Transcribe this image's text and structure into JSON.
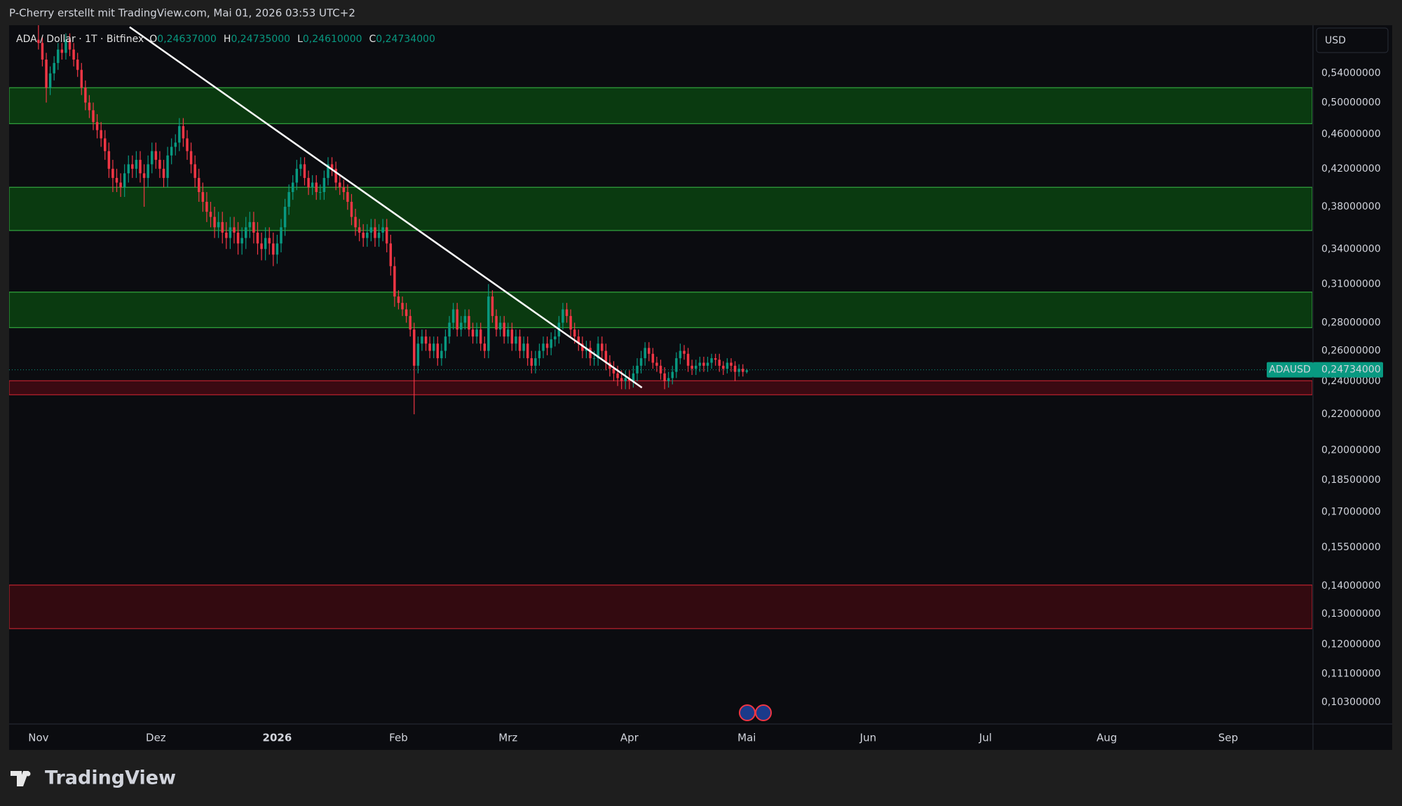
{
  "top_bar": "P-Cherry erstellt mit TradingView.com, Mai 01, 2026 03:53 UTC+2",
  "logo": "TradingView",
  "chart_data": {
    "type": "candlestick",
    "symbol": "ADA / Dollar · 1T · Bitfinex",
    "ohlc_legend": [
      {
        "key": "O",
        "value": {
          "value": 0.24637,
          "label": "0,24637000"
        }
      },
      {
        "key": "H",
        "value": {
          "value": 0.24735,
          "label": "0,24735000"
        }
      },
      {
        "key": "L",
        "value": {
          "value": 0.2461,
          "label": "0,24610000"
        }
      },
      {
        "key": "C",
        "value": {
          "value": 0.24734,
          "label": "0,24734000"
        }
      }
    ],
    "currency": "USD",
    "symbol_tag": "ADAUSD",
    "last_price": {
      "value": 0.24734,
      "label": "0,24734000"
    },
    "log_scale": true,
    "grid": false,
    "up_color": "#089981",
    "down_color": "#f23645",
    "xlim": [
      -7.5,
      325.5
    ],
    "ylim": [
      0.0973,
      0.613
    ],
    "xticks": [
      {
        "value": 0,
        "label": "Nov"
      },
      {
        "value": 30,
        "label": "Dez"
      },
      {
        "value": 61,
        "label": "2026"
      },
      {
        "value": 92,
        "label": "Feb"
      },
      {
        "value": 120,
        "label": "Mrz"
      },
      {
        "value": 151,
        "label": "Apr"
      },
      {
        "value": 181,
        "label": "Mai"
      },
      {
        "value": 212,
        "label": "Jun"
      },
      {
        "value": 242,
        "label": "Jul"
      },
      {
        "value": 273,
        "label": "Aug"
      },
      {
        "value": 304,
        "label": "Sep"
      }
    ],
    "yticks": [
      {
        "value": 0.54,
        "label": "0,54000000"
      },
      {
        "value": 0.5,
        "label": "0,50000000"
      },
      {
        "value": 0.46,
        "label": "0,46000000"
      },
      {
        "value": 0.42,
        "label": "0,42000000"
      },
      {
        "value": 0.38,
        "label": "0,38000000"
      },
      {
        "value": 0.34,
        "label": "0,34000000"
      },
      {
        "value": 0.31,
        "label": "0,31000000"
      },
      {
        "value": 0.28,
        "label": "0,28000000"
      },
      {
        "value": 0.26,
        "label": "0,26000000"
      },
      {
        "value": 0.24,
        "label": "0,24000000"
      },
      {
        "value": 0.22,
        "label": "0,22000000"
      },
      {
        "value": 0.2,
        "label": "0,20000000"
      },
      {
        "value": 0.185,
        "label": "0,18500000"
      },
      {
        "value": 0.17,
        "label": "0,17000000"
      },
      {
        "value": 0.155,
        "label": "0,15500000"
      },
      {
        "value": 0.14,
        "label": "0,14000000"
      },
      {
        "value": 0.13,
        "label": "0,13000000"
      },
      {
        "value": 0.12,
        "label": "0,12000000"
      },
      {
        "value": 0.111,
        "label": "0,11100000"
      },
      {
        "value": 0.103,
        "label": "0,10300000"
      }
    ],
    "zones": [
      {
        "top": 0.52,
        "bottom": 0.473,
        "fill": "#0a3a10",
        "border": "#2f9e3b"
      },
      {
        "top": 0.4,
        "bottom": 0.357,
        "fill": "#0a3a10",
        "border": "#2f9e3b"
      },
      {
        "top": 0.3035,
        "bottom": 0.2764,
        "fill": "#0a3a10",
        "border": "#2f9e3b"
      },
      {
        "top": 0.2403,
        "bottom": 0.2316,
        "fill": "#3a0a12",
        "border": "#b3202c"
      },
      {
        "top": 0.1403,
        "bottom": 0.1251,
        "fill": "#330a10",
        "border": "#b3202c"
      }
    ],
    "trendline": {
      "start": [
        23.3,
        0.61
      ],
      "end": [
        154.2,
        0.236
      ],
      "color": "#ffffff"
    },
    "x": [
      0,
      1,
      2,
      3,
      4,
      5,
      6,
      7,
      8,
      9,
      10,
      11,
      12,
      13,
      14,
      15,
      16,
      17,
      18,
      19,
      20,
      21,
      22,
      23,
      24,
      25,
      26,
      27,
      28,
      29,
      30,
      31,
      32,
      33,
      34,
      35,
      36,
      37,
      38,
      39,
      40,
      41,
      42,
      43,
      44,
      45,
      46,
      47,
      48,
      49,
      50,
      51,
      52,
      53,
      54,
      55,
      56,
      57,
      58,
      59,
      60,
      61,
      62,
      63,
      64,
      65,
      66,
      67,
      68,
      69,
      70,
      71,
      72,
      73,
      74,
      75,
      76,
      77,
      78,
      79,
      80,
      81,
      82,
      83,
      84,
      85,
      86,
      87,
      88,
      89,
      90,
      91,
      92,
      93,
      94,
      95,
      96,
      97,
      98,
      99,
      100,
      101,
      102,
      103,
      104,
      105,
      106,
      107,
      108,
      109,
      110,
      111,
      112,
      113,
      114,
      115,
      116,
      117,
      118,
      119,
      120,
      121,
      122,
      123,
      124,
      125,
      126,
      127,
      128,
      129,
      130,
      131,
      132,
      133,
      134,
      135,
      136,
      137,
      138,
      139,
      140,
      141,
      142,
      143,
      144,
      145,
      146,
      147,
      148,
      149,
      150,
      151,
      152,
      153,
      154,
      155,
      156,
      157,
      158,
      159,
      160,
      161,
      162,
      163,
      164,
      165,
      166,
      167,
      168,
      169,
      170,
      171,
      172,
      173,
      174,
      175,
      176,
      177,
      178,
      179,
      180,
      181
    ],
    "open": [
      0.59,
      0.585,
      0.56,
      0.52,
      0.54,
      0.555,
      0.575,
      0.57,
      0.59,
      0.575,
      0.56,
      0.545,
      0.52,
      0.5,
      0.49,
      0.475,
      0.465,
      0.455,
      0.44,
      0.42,
      0.41,
      0.405,
      0.4,
      0.415,
      0.425,
      0.42,
      0.43,
      0.415,
      0.41,
      0.425,
      0.44,
      0.43,
      0.42,
      0.41,
      0.435,
      0.445,
      0.45,
      0.47,
      0.455,
      0.44,
      0.425,
      0.41,
      0.395,
      0.385,
      0.375,
      0.37,
      0.36,
      0.365,
      0.355,
      0.35,
      0.36,
      0.355,
      0.345,
      0.35,
      0.36,
      0.365,
      0.355,
      0.345,
      0.34,
      0.35,
      0.345,
      0.335,
      0.345,
      0.36,
      0.38,
      0.395,
      0.405,
      0.42,
      0.425,
      0.41,
      0.4,
      0.405,
      0.395,
      0.395,
      0.41,
      0.425,
      0.42,
      0.405,
      0.4,
      0.395,
      0.385,
      0.37,
      0.36,
      0.355,
      0.35,
      0.355,
      0.36,
      0.35,
      0.355,
      0.36,
      0.345,
      0.325,
      0.3,
      0.295,
      0.29,
      0.285,
      0.275,
      0.25,
      0.265,
      0.27,
      0.265,
      0.26,
      0.265,
      0.255,
      0.26,
      0.27,
      0.28,
      0.29,
      0.275,
      0.28,
      0.285,
      0.275,
      0.27,
      0.275,
      0.265,
      0.26,
      0.3,
      0.285,
      0.275,
      0.28,
      0.27,
      0.275,
      0.265,
      0.27,
      0.26,
      0.265,
      0.255,
      0.25,
      0.255,
      0.26,
      0.265,
      0.262,
      0.268,
      0.27,
      0.28,
      0.29,
      0.285,
      0.275,
      0.27,
      0.265,
      0.26,
      0.262,
      0.255,
      0.255,
      0.265,
      0.26,
      0.252,
      0.248,
      0.245,
      0.242,
      0.24,
      0.242,
      0.24,
      0.245,
      0.25,
      0.255,
      0.262,
      0.258,
      0.252,
      0.25,
      0.245,
      0.24,
      0.242,
      0.246,
      0.255,
      0.26,
      0.258,
      0.25,
      0.248,
      0.25,
      0.252,
      0.25,
      0.252,
      0.255,
      0.254,
      0.25,
      0.248,
      0.252,
      0.25,
      0.246,
      0.248,
      0.246
    ],
    "high": [
      0.62,
      0.595,
      0.57,
      0.55,
      0.565,
      0.585,
      0.585,
      0.6,
      0.6,
      0.585,
      0.57,
      0.555,
      0.53,
      0.51,
      0.5,
      0.485,
      0.475,
      0.465,
      0.45,
      0.43,
      0.42,
      0.415,
      0.425,
      0.435,
      0.435,
      0.44,
      0.44,
      0.425,
      0.435,
      0.45,
      0.45,
      0.44,
      0.43,
      0.445,
      0.455,
      0.46,
      0.48,
      0.48,
      0.465,
      0.45,
      0.435,
      0.42,
      0.405,
      0.395,
      0.385,
      0.38,
      0.375,
      0.375,
      0.365,
      0.37,
      0.37,
      0.365,
      0.36,
      0.37,
      0.375,
      0.375,
      0.365,
      0.355,
      0.36,
      0.36,
      0.355,
      0.353,
      0.368,
      0.388,
      0.403,
      0.413,
      0.43,
      0.433,
      0.433,
      0.418,
      0.413,
      0.413,
      0.403,
      0.418,
      0.433,
      0.433,
      0.428,
      0.413,
      0.408,
      0.403,
      0.393,
      0.378,
      0.368,
      0.363,
      0.363,
      0.368,
      0.368,
      0.363,
      0.368,
      0.368,
      0.353,
      0.333,
      0.305,
      0.3,
      0.295,
      0.29,
      0.28,
      0.27,
      0.275,
      0.275,
      0.27,
      0.27,
      0.27,
      0.265,
      0.275,
      0.285,
      0.295,
      0.295,
      0.285,
      0.29,
      0.29,
      0.28,
      0.28,
      0.28,
      0.27,
      0.31,
      0.305,
      0.29,
      0.285,
      0.285,
      0.28,
      0.28,
      0.275,
      0.275,
      0.27,
      0.27,
      0.26,
      0.26,
      0.265,
      0.27,
      0.27,
      0.273,
      0.275,
      0.285,
      0.295,
      0.295,
      0.29,
      0.28,
      0.275,
      0.27,
      0.267,
      0.267,
      0.26,
      0.27,
      0.27,
      0.265,
      0.257,
      0.253,
      0.25,
      0.247,
      0.247,
      0.247,
      0.25,
      0.255,
      0.26,
      0.266,
      0.266,
      0.262,
      0.256,
      0.254,
      0.249,
      0.246,
      0.25,
      0.259,
      0.265,
      0.264,
      0.262,
      0.254,
      0.254,
      0.256,
      0.256,
      0.256,
      0.258,
      0.258,
      0.258,
      0.253,
      0.255,
      0.255,
      0.253,
      0.251,
      0.251,
      0.248
    ],
    "low": [
      0.575,
      0.55,
      0.5,
      0.51,
      0.53,
      0.545,
      0.56,
      0.56,
      0.565,
      0.55,
      0.535,
      0.51,
      0.49,
      0.48,
      0.465,
      0.455,
      0.445,
      0.43,
      0.41,
      0.395,
      0.395,
      0.39,
      0.39,
      0.405,
      0.41,
      0.41,
      0.405,
      0.38,
      0.4,
      0.415,
      0.42,
      0.41,
      0.4,
      0.4,
      0.425,
      0.435,
      0.44,
      0.445,
      0.43,
      0.415,
      0.4,
      0.385,
      0.375,
      0.365,
      0.36,
      0.35,
      0.35,
      0.345,
      0.34,
      0.34,
      0.345,
      0.335,
      0.335,
      0.34,
      0.35,
      0.345,
      0.335,
      0.33,
      0.33,
      0.335,
      0.325,
      0.327,
      0.337,
      0.352,
      0.372,
      0.387,
      0.397,
      0.412,
      0.402,
      0.392,
      0.392,
      0.387,
      0.387,
      0.387,
      0.402,
      0.412,
      0.397,
      0.392,
      0.387,
      0.377,
      0.362,
      0.352,
      0.347,
      0.342,
      0.342,
      0.347,
      0.342,
      0.342,
      0.347,
      0.337,
      0.317,
      0.292,
      0.29,
      0.285,
      0.28,
      0.27,
      0.22,
      0.245,
      0.26,
      0.26,
      0.255,
      0.255,
      0.25,
      0.25,
      0.255,
      0.265,
      0.275,
      0.27,
      0.27,
      0.275,
      0.27,
      0.265,
      0.265,
      0.26,
      0.255,
      0.255,
      0.28,
      0.27,
      0.27,
      0.265,
      0.265,
      0.26,
      0.26,
      0.255,
      0.255,
      0.25,
      0.245,
      0.245,
      0.25,
      0.255,
      0.257,
      0.257,
      0.263,
      0.265,
      0.275,
      0.28,
      0.27,
      0.265,
      0.26,
      0.255,
      0.255,
      0.25,
      0.25,
      0.25,
      0.255,
      0.247,
      0.243,
      0.24,
      0.237,
      0.235,
      0.235,
      0.235,
      0.236,
      0.24,
      0.245,
      0.25,
      0.253,
      0.248,
      0.246,
      0.241,
      0.235,
      0.236,
      0.238,
      0.242,
      0.251,
      0.254,
      0.246,
      0.244,
      0.244,
      0.246,
      0.246,
      0.246,
      0.248,
      0.25,
      0.246,
      0.244,
      0.245,
      0.246,
      0.24,
      0.243,
      0.243,
      0.245
    ],
    "close": [
      0.585,
      0.56,
      0.52,
      0.54,
      0.555,
      0.575,
      0.57,
      0.59,
      0.575,
      0.56,
      0.545,
      0.52,
      0.5,
      0.49,
      0.475,
      0.465,
      0.455,
      0.44,
      0.42,
      0.41,
      0.405,
      0.4,
      0.415,
      0.425,
      0.42,
      0.43,
      0.415,
      0.41,
      0.425,
      0.44,
      0.43,
      0.42,
      0.41,
      0.435,
      0.445,
      0.45,
      0.47,
      0.455,
      0.44,
      0.425,
      0.41,
      0.395,
      0.385,
      0.375,
      0.37,
      0.36,
      0.365,
      0.355,
      0.35,
      0.36,
      0.355,
      0.345,
      0.35,
      0.36,
      0.365,
      0.355,
      0.345,
      0.34,
      0.35,
      0.345,
      0.335,
      0.345,
      0.36,
      0.38,
      0.395,
      0.405,
      0.42,
      0.425,
      0.41,
      0.4,
      0.405,
      0.395,
      0.395,
      0.41,
      0.425,
      0.42,
      0.405,
      0.4,
      0.395,
      0.385,
      0.37,
      0.36,
      0.355,
      0.35,
      0.355,
      0.36,
      0.35,
      0.355,
      0.36,
      0.345,
      0.325,
      0.3,
      0.295,
      0.29,
      0.285,
      0.275,
      0.25,
      0.265,
      0.27,
      0.265,
      0.26,
      0.265,
      0.255,
      0.26,
      0.27,
      0.28,
      0.29,
      0.275,
      0.28,
      0.285,
      0.275,
      0.27,
      0.275,
      0.265,
      0.26,
      0.3,
      0.285,
      0.275,
      0.28,
      0.27,
      0.275,
      0.265,
      0.27,
      0.26,
      0.265,
      0.255,
      0.25,
      0.255,
      0.26,
      0.265,
      0.262,
      0.268,
      0.27,
      0.28,
      0.29,
      0.285,
      0.275,
      0.27,
      0.265,
      0.26,
      0.262,
      0.255,
      0.255,
      0.265,
      0.26,
      0.252,
      0.248,
      0.245,
      0.242,
      0.24,
      0.242,
      0.24,
      0.245,
      0.25,
      0.255,
      0.262,
      0.258,
      0.252,
      0.25,
      0.245,
      0.24,
      0.242,
      0.246,
      0.255,
      0.26,
      0.258,
      0.25,
      0.248,
      0.25,
      0.252,
      0.25,
      0.252,
      0.255,
      0.254,
      0.25,
      0.248,
      0.252,
      0.25,
      0.246,
      0.248,
      0.246,
      0.247
    ]
  }
}
